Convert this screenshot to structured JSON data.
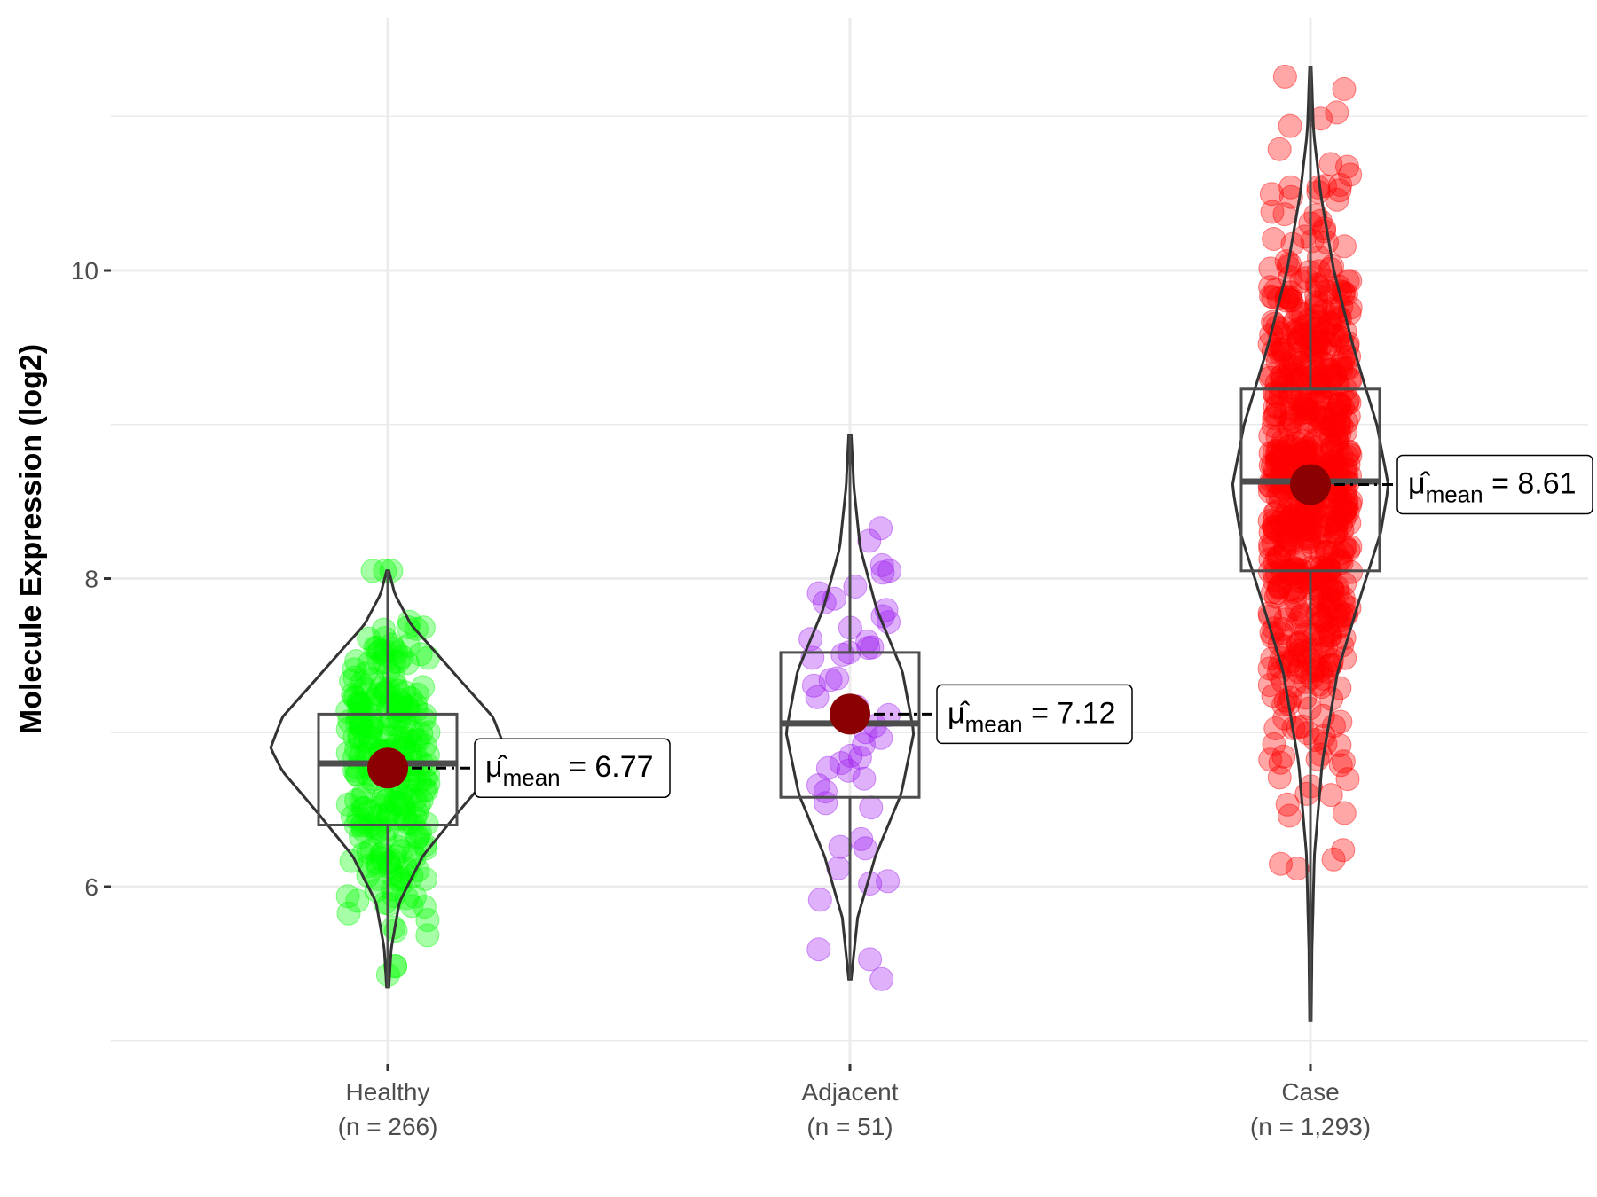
{
  "chart_data": {
    "type": "violin-box-jitter",
    "ylabel": "Molecule Expression (log2)",
    "xlabel": "",
    "ylim": [
      4.8,
      11.65
    ],
    "yticks": [
      6,
      8,
      10
    ],
    "y_tick_labels": [
      "6",
      "8",
      "10"
    ],
    "grid": true,
    "legend": "none",
    "groups": [
      {
        "name": "Healthy",
        "count_label": "(n = 266)",
        "n": 266,
        "color": "#00FF00",
        "mean": 6.77,
        "mean_label": "6.77",
        "median": 6.8,
        "q1": 6.4,
        "q3": 7.12,
        "whisker_low": 5.35,
        "whisker_high": 8.05,
        "violin_profile": [
          [
            5.35,
            0.01
          ],
          [
            5.6,
            0.03
          ],
          [
            5.9,
            0.1
          ],
          [
            6.2,
            0.3
          ],
          [
            6.5,
            0.62
          ],
          [
            6.75,
            0.9
          ],
          [
            6.9,
            1.0
          ],
          [
            7.1,
            0.9
          ],
          [
            7.4,
            0.55
          ],
          [
            7.7,
            0.2
          ],
          [
            7.9,
            0.06
          ],
          [
            8.05,
            0.01
          ]
        ]
      },
      {
        "name": "Adjacent",
        "count_label": "(n = 51)",
        "n": 51,
        "color": "#A020F0",
        "mean": 7.12,
        "mean_label": "7.12",
        "median": 7.06,
        "q1": 6.58,
        "q3": 7.52,
        "whisker_low": 5.4,
        "whisker_high": 8.93,
        "violin_profile": [
          [
            5.4,
            0.02
          ],
          [
            5.8,
            0.12
          ],
          [
            6.2,
            0.4
          ],
          [
            6.6,
            0.8
          ],
          [
            7.0,
            1.0
          ],
          [
            7.4,
            0.82
          ],
          [
            7.8,
            0.42
          ],
          [
            8.2,
            0.16
          ],
          [
            8.6,
            0.06
          ],
          [
            8.93,
            0.02
          ]
        ]
      },
      {
        "name": "Case",
        "count_label": "(n = 1,293)",
        "n": 1293,
        "color": "#FF0000",
        "mean": 8.61,
        "mean_label": "8.61",
        "median": 8.63,
        "q1": 8.05,
        "q3": 9.23,
        "whisker_low": 5.13,
        "whisker_high": 11.32,
        "violin_profile": [
          [
            5.13,
            0.01
          ],
          [
            5.6,
            0.02
          ],
          [
            6.2,
            0.05
          ],
          [
            6.8,
            0.15
          ],
          [
            7.4,
            0.35
          ],
          [
            7.9,
            0.65
          ],
          [
            8.3,
            0.9
          ],
          [
            8.6,
            1.0
          ],
          [
            9.0,
            0.85
          ],
          [
            9.5,
            0.55
          ],
          [
            10.0,
            0.3
          ],
          [
            10.5,
            0.13
          ],
          [
            10.9,
            0.04
          ],
          [
            11.32,
            0.01
          ]
        ]
      }
    ],
    "mean_prefix": "μ̂",
    "mean_subscript": "mean",
    "mean_equals": "="
  }
}
